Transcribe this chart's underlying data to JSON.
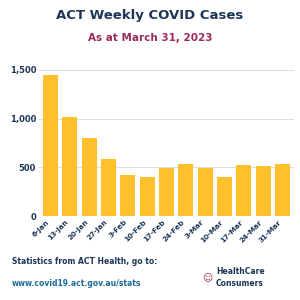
{
  "title": "ACT Weekly COVID Cases",
  "subtitle": "As at March 31, 2023",
  "categories": [
    "6-Jan",
    "13-Jan",
    "20-Jan",
    "27-Jan",
    "3-Feb",
    "10-Feb",
    "17-Feb",
    "24-Feb",
    "3-Mar",
    "10-Mar",
    "17-Mar",
    "24-Mar",
    "31-Mar"
  ],
  "values": [
    1450,
    1020,
    800,
    580,
    420,
    400,
    490,
    530,
    490,
    400,
    520,
    515,
    530
  ],
  "bar_color": "#FFC02E",
  "title_color": "#1d3557",
  "subtitle_color": "#9b2b5a",
  "ylabel_ticks": [
    0,
    500,
    1000,
    1500
  ],
  "ylim": [
    0,
    1600
  ],
  "footer_line1": "Statistics from ACT Health, go to:",
  "footer_line2": "www.covid19.act.gov.au/stats",
  "footer_text_color": "#1d3557",
  "footer_link_color": "#1a6b9a",
  "logo_text": "HealthCare\nConsumers",
  "logo_color": "#1d3557",
  "background_color": "#ffffff",
  "grid_color": "#d0d0d0"
}
